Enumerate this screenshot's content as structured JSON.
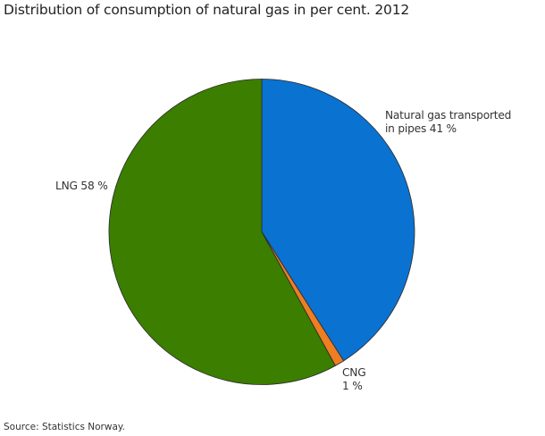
{
  "title": "Distribution of consumption of natural gas in per cent. 2012",
  "source": "Source: Statistics Norway.",
  "labels": {
    "pipes_line1": "Natural gas transported",
    "pipes_line2": "in pipes 41 %",
    "cng_line1": "CNG",
    "cng_line2": "1 %",
    "lng": "LNG 58 %"
  },
  "chart_data": {
    "type": "pie",
    "title": "Distribution of consumption of natural gas in per cent. 2012",
    "categories": [
      "Natural gas transported in pipes",
      "CNG",
      "LNG"
    ],
    "values": [
      41,
      1,
      58
    ],
    "unit": "%",
    "colors": [
      "#0a72d1",
      "#ef7d22",
      "#3b7e00"
    ],
    "start_angle_deg": 0,
    "direction": "clockwise",
    "legend": "none (direct labels)",
    "source": "Source: Statistics Norway."
  }
}
